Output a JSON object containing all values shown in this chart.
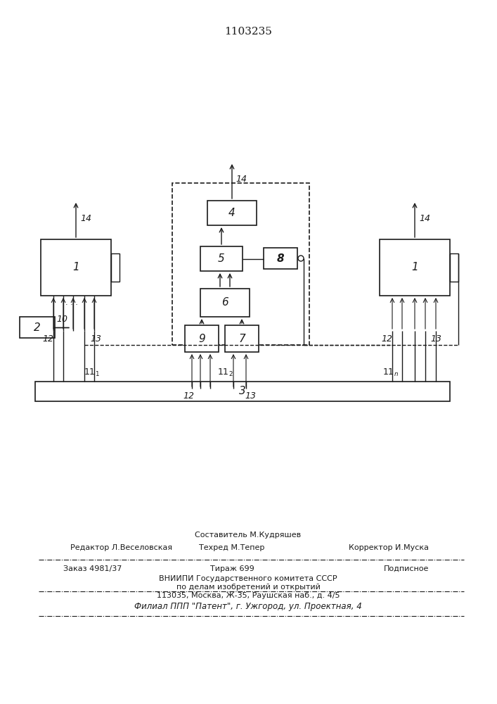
{
  "title": "1103235",
  "title_fontsize": 11,
  "bg_color": "#ffffff",
  "line_color": "#1a1a1a",
  "box_color": "#ffffff",
  "box_edge": "#1a1a1a",
  "patent_info": {
    "line1_center": "Составитель М.Кудряшев",
    "line2_left": "Редактор Л.Веселовская",
    "line2_center": "Техред М.Тепер",
    "line2_right": "Корректор И.Муска",
    "line3_left": "Заказ 4981/37",
    "line3_center": "Тираж 699",
    "line3_right": "Подписное",
    "line4": "ВНИИПИ Государственного комитета СССР",
    "line5": "по делам изобретений и открытий",
    "line6": "113035, Москва, Ж-35, Раушская наб., д. 4/5",
    "line7": "Филиал ППП \"Патент\", г. Ужгород, ул. Проектная, 4"
  }
}
